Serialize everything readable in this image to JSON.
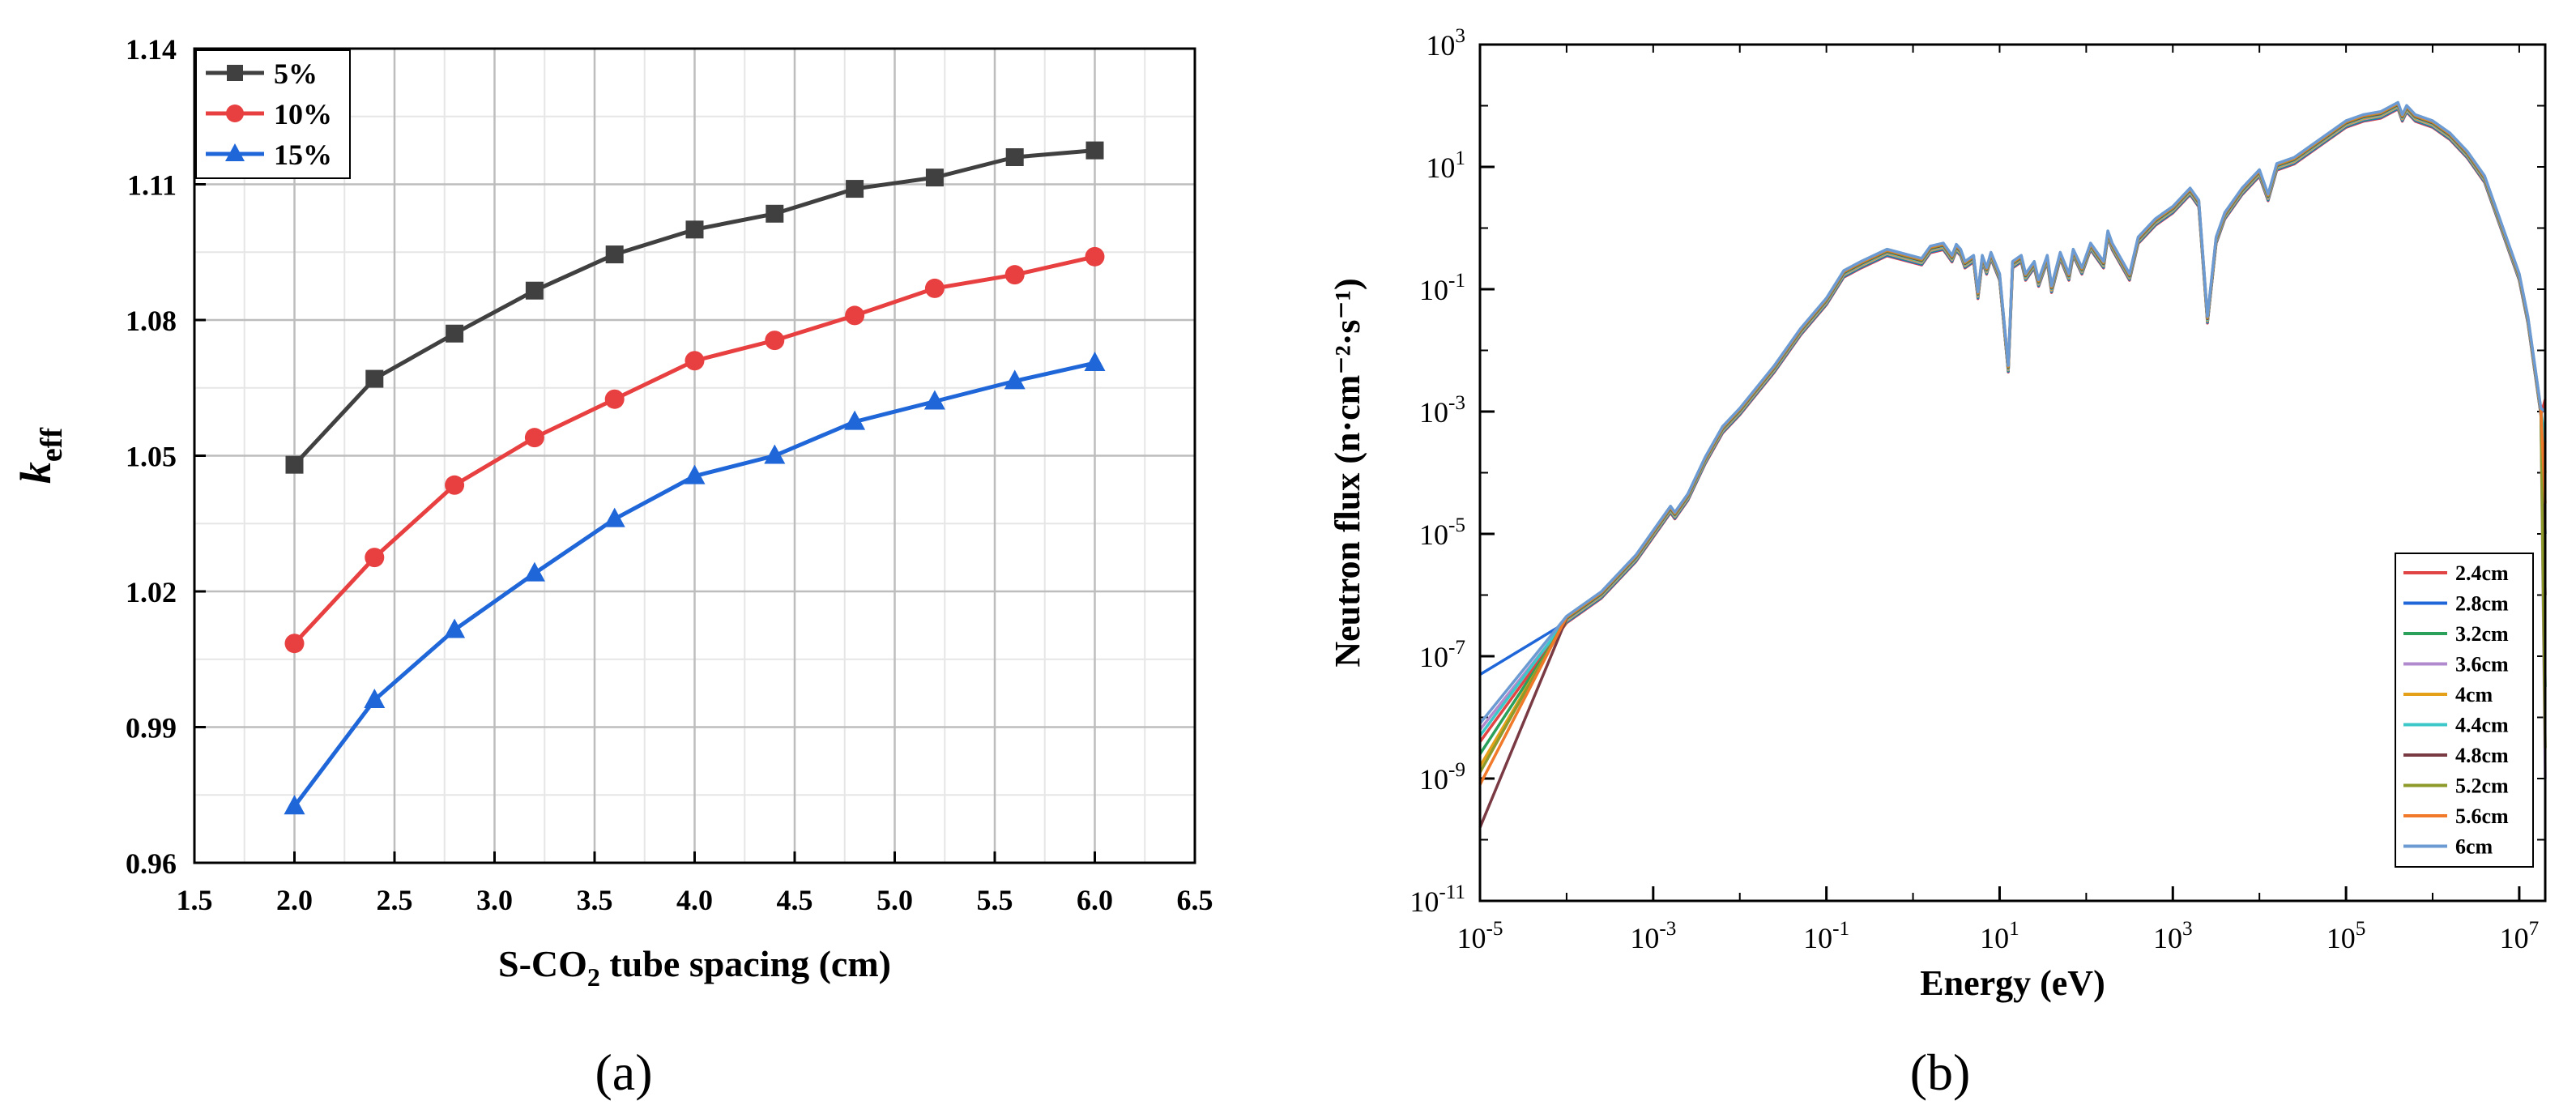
{
  "figure": {
    "label_a": "(a)",
    "label_b": "(b)"
  },
  "chart_data": [
    {
      "type": "line",
      "title": "",
      "xlabel": "S-CO2 tube spacing (cm)",
      "ylabel": "k_eff",
      "xlim": [
        1.5,
        6.5
      ],
      "ylim": [
        0.96,
        1.14
      ],
      "xticks": [
        1.5,
        2.0,
        2.5,
        3.0,
        3.5,
        4.0,
        4.5,
        5.0,
        5.5,
        6.0,
        6.5
      ],
      "xtick_labels": [
        "1.5",
        "2.0",
        "2.5",
        "3.0",
        "3.5",
        "4.0",
        "4.5",
        "5.0",
        "5.5",
        "6.0",
        "6.5"
      ],
      "yticks": [
        0.96,
        0.99,
        1.02,
        1.05,
        1.08,
        1.11,
        1.14
      ],
      "ytick_labels": [
        "0.96",
        "0.99",
        "1.02",
        "1.05",
        "1.08",
        "1.11",
        "1.14"
      ],
      "grid": true,
      "legend_position": "top-left",
      "x": [
        2.0,
        2.4,
        2.8,
        3.2,
        3.6,
        4.0,
        4.4,
        4.8,
        5.2,
        5.6,
        6.0
      ],
      "series": [
        {
          "name": "5%",
          "color": "#404040",
          "marker": "square",
          "values": [
            1.048,
            1.067,
            1.077,
            1.0865,
            1.0945,
            1.1,
            1.1035,
            1.109,
            1.1115,
            1.116,
            1.1175
          ]
        },
        {
          "name": "10%",
          "color": "#e84040",
          "marker": "circle",
          "values": [
            1.0085,
            1.0275,
            1.0435,
            1.054,
            1.0625,
            1.071,
            1.0755,
            1.081,
            1.087,
            1.09,
            1.094
          ]
        },
        {
          "name": "15%",
          "color": "#1f66d9",
          "marker": "triangle",
          "values": [
            0.9725,
            0.996,
            1.0115,
            1.024,
            1.036,
            1.0455,
            1.05,
            1.0575,
            1.062,
            1.0665,
            1.0705
          ]
        }
      ]
    },
    {
      "type": "line",
      "title": "",
      "xlabel": "Energy (eV)",
      "ylabel": "Neutron flux (n·cm⁻²·s⁻¹)",
      "xscale": "log",
      "yscale": "log",
      "xlim_log10": [
        -5,
        7.3
      ],
      "ylim_log10": [
        -11,
        3
      ],
      "xtick_exponents": [
        "-5",
        "-3",
        "-1",
        "1",
        "3",
        "5",
        "7"
      ],
      "ytick_exponents": [
        "3",
        "1",
        "-1",
        "-3",
        "-5",
        "-7",
        "-9",
        "-11"
      ],
      "tick_base": "10",
      "grid": false,
      "legend_position": "bottom-right",
      "legend_entries": [
        {
          "name": "2.4cm",
          "color": "#e04444"
        },
        {
          "name": "2.8cm",
          "color": "#1f66d9"
        },
        {
          "name": "3.2cm",
          "color": "#2aa05a"
        },
        {
          "name": "3.6cm",
          "color": "#b08acd"
        },
        {
          "name": "4cm",
          "color": "#e5a01a"
        },
        {
          "name": "4.4cm",
          "color": "#3cc7c8"
        },
        {
          "name": "4.8cm",
          "color": "#7a3a44"
        },
        {
          "name": "5.2cm",
          "color": "#8e9a2a"
        },
        {
          "name": "5.6cm",
          "color": "#f07a2a"
        },
        {
          "name": "6cm",
          "color": "#6b9bd2"
        }
      ],
      "low_energy_start_log10y": [
        -8.4,
        -7.3,
        -8.6,
        -8.2,
        -8.8,
        -8.3,
        -9.8,
        -8.9,
        -9.1,
        -8.1
      ],
      "spectrum": {
        "log10_energy": [
          -4,
          -3.6,
          -3.2,
          -3.0,
          -2.8,
          -2.75,
          -2.6,
          -2.4,
          -2.2,
          -2.0,
          -1.6,
          -1.3,
          -1.0,
          -0.8,
          -0.6,
          -0.3,
          0.1,
          0.2,
          0.35,
          0.45,
          0.5,
          0.55,
          0.6,
          0.7,
          0.75,
          0.8,
          0.85,
          0.9,
          1.0,
          1.1,
          1.15,
          1.25,
          1.3,
          1.4,
          1.45,
          1.55,
          1.6,
          1.7,
          1.8,
          1.85,
          1.95,
          2.05,
          2.2,
          2.25,
          2.3,
          2.5,
          2.6,
          2.8,
          3.0,
          3.2,
          3.3,
          3.4,
          3.5,
          3.6,
          3.8,
          4.0,
          4.1,
          4.2,
          4.4,
          4.6,
          4.8,
          5.0,
          5.2,
          5.4,
          5.6,
          5.65,
          5.7,
          5.8,
          6.0,
          6.2,
          6.4,
          6.6,
          6.8,
          7.0,
          7.1,
          7.2,
          7.25
        ],
        "log10_flux": [
          -6.4,
          -6.0,
          -5.4,
          -5.0,
          -4.6,
          -4.7,
          -4.4,
          -3.8,
          -3.3,
          -3.0,
          -2.3,
          -1.7,
          -1.2,
          -0.75,
          -0.6,
          -0.4,
          -0.55,
          -0.35,
          -0.3,
          -0.5,
          -0.32,
          -0.4,
          -0.6,
          -0.5,
          -1.1,
          -0.5,
          -0.7,
          -0.45,
          -0.8,
          -2.3,
          -0.6,
          -0.5,
          -0.8,
          -0.6,
          -0.9,
          -0.5,
          -1.0,
          -0.45,
          -0.8,
          -0.4,
          -0.7,
          -0.3,
          -0.6,
          -0.1,
          -0.3,
          -0.8,
          -0.2,
          0.1,
          0.3,
          0.6,
          0.4,
          -1.5,
          -0.2,
          0.2,
          0.6,
          0.9,
          0.5,
          1.0,
          1.1,
          1.3,
          1.5,
          1.7,
          1.8,
          1.85,
          2.0,
          1.8,
          1.95,
          1.8,
          1.7,
          1.5,
          1.2,
          0.8,
          0.0,
          -0.8,
          -1.5,
          -2.5,
          -3.0
        ]
      },
      "tail_log10_flux": [
        -2.8,
        -5.0,
        -7.5,
        -9.0,
        -4.0,
        -3.5,
        -6.0,
        -8.5,
        -4.5,
        -3.0
      ]
    }
  ]
}
